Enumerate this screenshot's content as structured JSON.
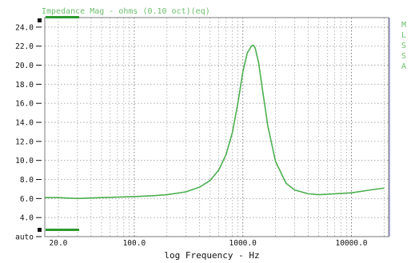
{
  "chart_data": {
    "type": "line",
    "title": "Impedance Mag - ohms (0.10 oct)(eq)",
    "xlabel": "log Frequency - Hz",
    "ylabel": "",
    "x_scale": "log",
    "xlim": [
      15,
      22000
    ],
    "ylim": [
      2,
      25
    ],
    "grid": true,
    "legend": "none",
    "side_label": "MLSSA",
    "y_tick_labels": [
      "auto",
      "4.0",
      "6.0",
      "8.0",
      "10.0",
      "12.0",
      "14.0",
      "16.0",
      "18.0",
      "20.0",
      "22.0",
      "24.0"
    ],
    "y_tick_values": [
      2,
      4,
      6,
      8,
      10,
      12,
      14,
      16,
      18,
      20,
      22,
      24
    ],
    "x_tick_labels": [
      "20.0",
      "100.0",
      "1000.0",
      "10000.0"
    ],
    "x_tick_values": [
      20,
      100,
      1000,
      10000
    ],
    "series": [
      {
        "color": "#4caf50",
        "x": [
          15,
          20,
          30,
          50,
          100,
          150,
          200,
          300,
          400,
          500,
          600,
          700,
          800,
          900,
          1000,
          1100,
          1200,
          1250,
          1300,
          1400,
          1500,
          1700,
          2000,
          2500,
          3000,
          4000,
          5000,
          7000,
          10000,
          15000,
          20000
        ],
        "y": [
          6.1,
          6.1,
          6.0,
          6.1,
          6.2,
          6.3,
          6.4,
          6.7,
          7.2,
          7.9,
          9.0,
          10.6,
          12.9,
          16.0,
          19.3,
          21.3,
          22.0,
          22.1,
          21.8,
          20.2,
          17.8,
          13.6,
          9.9,
          7.6,
          6.9,
          6.5,
          6.4,
          6.5,
          6.6,
          6.9,
          7.1
        ]
      }
    ]
  }
}
